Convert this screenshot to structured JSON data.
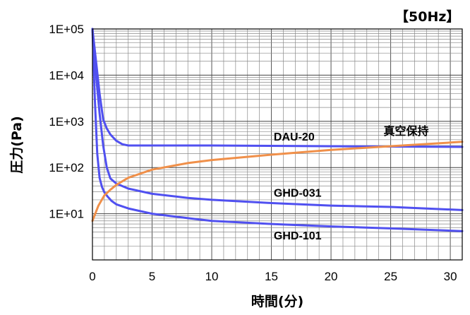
{
  "chart_data": {
    "type": "line",
    "title": "",
    "corner_label": "【50Hz】",
    "xlabel": "時間(分)",
    "ylabel": "圧力(Pa)",
    "xlim": [
      0,
      31
    ],
    "ylim": [
      1,
      100000
    ],
    "yscale": "log",
    "grid": true,
    "x_ticks": [
      0,
      5,
      10,
      15,
      20,
      25,
      30
    ],
    "x_tick_labels": [
      "0",
      "5",
      "10",
      "15",
      "20",
      "25",
      "30"
    ],
    "y_ticks": [
      100000,
      10000,
      1000,
      100,
      10
    ],
    "y_tick_labels": [
      "1E+05",
      "1E+04",
      "1E+03",
      "1E+02",
      "1E+01"
    ],
    "colors": {
      "pump": "#5050f0",
      "hold": "#f0904a"
    },
    "series": [
      {
        "name": "DAU-20",
        "color": "#5050f0",
        "x": [
          0,
          0.3,
          0.6,
          0.9,
          1.2,
          1.5,
          2.0,
          2.5,
          3.0,
          5,
          10,
          15,
          20,
          25,
          31
        ],
        "y": [
          100000,
          20000,
          4000,
          1100,
          700,
          520,
          380,
          320,
          300,
          300,
          300,
          295,
          290,
          285,
          280
        ]
      },
      {
        "name": "GHD-031",
        "color": "#5050f0",
        "x": [
          0,
          0.3,
          0.6,
          0.9,
          1.2,
          1.5,
          2,
          3,
          5,
          8,
          10,
          15,
          20,
          25,
          31
        ],
        "y": [
          100000,
          10000,
          1500,
          300,
          100,
          58,
          45,
          35,
          27,
          22,
          20,
          17,
          15,
          14,
          12
        ]
      },
      {
        "name": "GHD-101",
        "color": "#5050f0",
        "x": [
          0,
          0.2,
          0.4,
          0.6,
          0.8,
          1.0,
          1.3,
          1.6,
          2,
          3,
          5,
          8,
          10,
          15,
          20,
          25,
          31
        ],
        "y": [
          100000,
          3000,
          200,
          60,
          38,
          29,
          23,
          19,
          16,
          13,
          10,
          8,
          7,
          6,
          5.3,
          4.8,
          4.2
        ]
      },
      {
        "name": "真空保持",
        "color": "#f0904a",
        "x": [
          0,
          0.5,
          1,
          1.5,
          2,
          3,
          5,
          8,
          10,
          15,
          20,
          25,
          31
        ],
        "y": [
          7,
          15,
          25,
          33,
          42,
          60,
          90,
          125,
          145,
          190,
          240,
          290,
          360
        ]
      }
    ]
  }
}
